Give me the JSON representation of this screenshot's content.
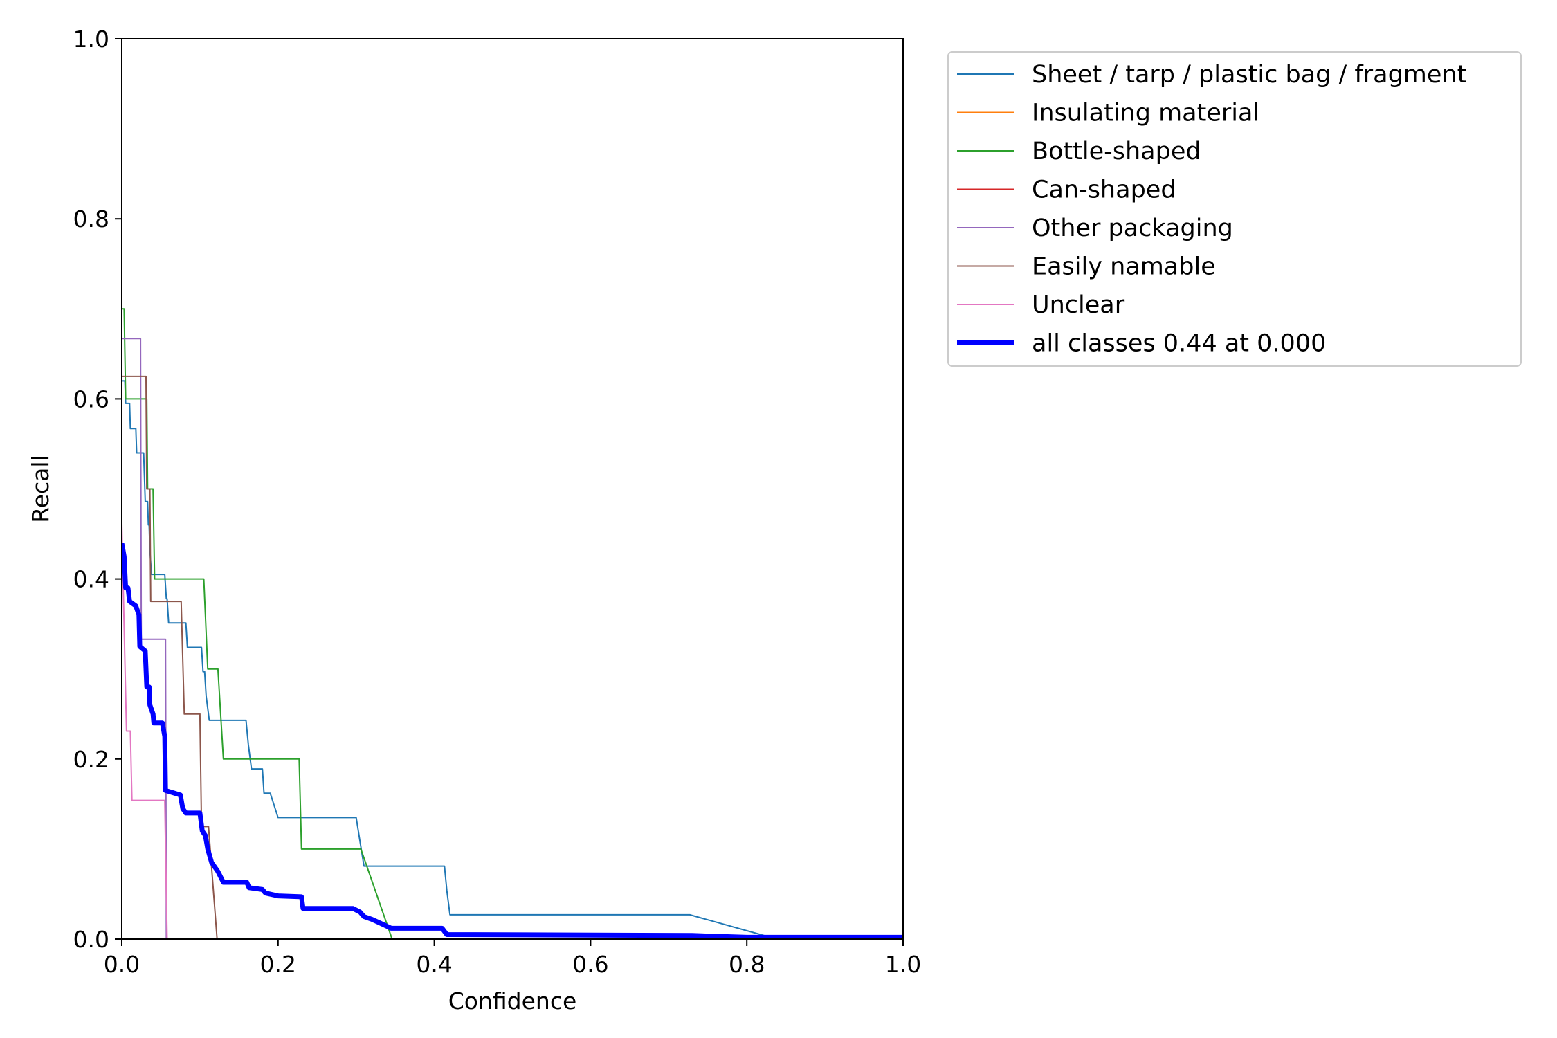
{
  "chart_data": {
    "type": "line",
    "title": "",
    "xlabel": "Confidence",
    "ylabel": "Recall",
    "xlim": [
      0.0,
      1.0
    ],
    "ylim": [
      0.0,
      1.0
    ],
    "xticks": [
      "0.0",
      "0.2",
      "0.4",
      "0.6",
      "0.8",
      "1.0"
    ],
    "yticks": [
      "0.0",
      "0.2",
      "0.4",
      "0.6",
      "0.8",
      "1.0"
    ],
    "grid": false,
    "legend_position": "outside-top-right",
    "series": [
      {
        "name": "Sheet / tarp / plastic bag / fragment",
        "color": "#1f77b4",
        "width": "thin",
        "points": [
          [
            0.0,
            0.62
          ],
          [
            0.004,
            0.62
          ],
          [
            0.005,
            0.595
          ],
          [
            0.01,
            0.595
          ],
          [
            0.011,
            0.567
          ],
          [
            0.018,
            0.567
          ],
          [
            0.019,
            0.54
          ],
          [
            0.028,
            0.54
          ],
          [
            0.03,
            0.486
          ],
          [
            0.033,
            0.486
          ],
          [
            0.034,
            0.46
          ],
          [
            0.035,
            0.46
          ],
          [
            0.036,
            0.432
          ],
          [
            0.038,
            0.405
          ],
          [
            0.055,
            0.405
          ],
          [
            0.057,
            0.378
          ],
          [
            0.058,
            0.378
          ],
          [
            0.06,
            0.351
          ],
          [
            0.082,
            0.351
          ],
          [
            0.084,
            0.324
          ],
          [
            0.102,
            0.324
          ],
          [
            0.104,
            0.297
          ],
          [
            0.106,
            0.297
          ],
          [
            0.108,
            0.27
          ],
          [
            0.112,
            0.243
          ],
          [
            0.159,
            0.243
          ],
          [
            0.162,
            0.216
          ],
          [
            0.166,
            0.189
          ],
          [
            0.18,
            0.189
          ],
          [
            0.182,
            0.162
          ],
          [
            0.19,
            0.162
          ],
          [
            0.2,
            0.135
          ],
          [
            0.3,
            0.135
          ],
          [
            0.305,
            0.108
          ],
          [
            0.31,
            0.081
          ],
          [
            0.413,
            0.081
          ],
          [
            0.416,
            0.054
          ],
          [
            0.42,
            0.027
          ],
          [
            0.727,
            0.027
          ],
          [
            0.83,
            0.002
          ],
          [
            1.0,
            0.001
          ]
        ]
      },
      {
        "name": "Insulating material",
        "color": "#ff7f0e",
        "width": "thin",
        "points": [
          [
            0.0,
            0.0
          ],
          [
            1.0,
            0.0
          ]
        ]
      },
      {
        "name": "Bottle-shaped",
        "color": "#2ca02c",
        "width": "thin",
        "points": [
          [
            0.0,
            0.7
          ],
          [
            0.003,
            0.7
          ],
          [
            0.005,
            0.6
          ],
          [
            0.032,
            0.6
          ],
          [
            0.033,
            0.5
          ],
          [
            0.04,
            0.5
          ],
          [
            0.042,
            0.4
          ],
          [
            0.105,
            0.4
          ],
          [
            0.11,
            0.3
          ],
          [
            0.123,
            0.3
          ],
          [
            0.13,
            0.2
          ],
          [
            0.227,
            0.2
          ],
          [
            0.23,
            0.1
          ],
          [
            0.306,
            0.1
          ],
          [
            0.346,
            0.0
          ],
          [
            1.0,
            0.0
          ]
        ]
      },
      {
        "name": "Can-shaped",
        "color": "#d62728",
        "width": "thin",
        "points": [
          [
            0.0,
            0.0
          ],
          [
            1.0,
            0.0
          ]
        ]
      },
      {
        "name": "Other packaging",
        "color": "#9467bd",
        "width": "thin",
        "points": [
          [
            0.0,
            0.667
          ],
          [
            0.024,
            0.667
          ],
          [
            0.025,
            0.333
          ],
          [
            0.056,
            0.333
          ],
          [
            0.057,
            0.0
          ],
          [
            1.0,
            0.0
          ]
        ]
      },
      {
        "name": "Easily namable",
        "color": "#8c564b",
        "width": "thin",
        "points": [
          [
            0.0,
            0.625
          ],
          [
            0.031,
            0.625
          ],
          [
            0.032,
            0.5
          ],
          [
            0.036,
            0.5
          ],
          [
            0.037,
            0.375
          ],
          [
            0.076,
            0.375
          ],
          [
            0.08,
            0.25
          ],
          [
            0.1,
            0.25
          ],
          [
            0.102,
            0.125
          ],
          [
            0.111,
            0.125
          ],
          [
            0.122,
            0.0
          ],
          [
            1.0,
            0.0
          ]
        ]
      },
      {
        "name": "Unclear",
        "color": "#e377c2",
        "width": "thin",
        "points": [
          [
            0.0,
            0.462
          ],
          [
            0.004,
            0.308
          ],
          [
            0.006,
            0.231
          ],
          [
            0.011,
            0.231
          ],
          [
            0.013,
            0.154
          ],
          [
            0.055,
            0.154
          ],
          [
            0.058,
            0.0
          ],
          [
            1.0,
            0.0
          ]
        ]
      },
      {
        "name": "all classes 0.44 at 0.000",
        "color": "#0000ff",
        "width": "thick",
        "points": [
          [
            0.0,
            0.44
          ],
          [
            0.003,
            0.425
          ],
          [
            0.005,
            0.39
          ],
          [
            0.008,
            0.39
          ],
          [
            0.01,
            0.375
          ],
          [
            0.018,
            0.37
          ],
          [
            0.022,
            0.36
          ],
          [
            0.023,
            0.325
          ],
          [
            0.03,
            0.32
          ],
          [
            0.032,
            0.28
          ],
          [
            0.035,
            0.28
          ],
          [
            0.036,
            0.26
          ],
          [
            0.04,
            0.25
          ],
          [
            0.041,
            0.24
          ],
          [
            0.052,
            0.24
          ],
          [
            0.055,
            0.225
          ],
          [
            0.056,
            0.165
          ],
          [
            0.075,
            0.16
          ],
          [
            0.078,
            0.145
          ],
          [
            0.082,
            0.14
          ],
          [
            0.1,
            0.14
          ],
          [
            0.103,
            0.12
          ],
          [
            0.107,
            0.115
          ],
          [
            0.11,
            0.1
          ],
          [
            0.115,
            0.085
          ],
          [
            0.123,
            0.075
          ],
          [
            0.13,
            0.063
          ],
          [
            0.16,
            0.063
          ],
          [
            0.163,
            0.057
          ],
          [
            0.18,
            0.055
          ],
          [
            0.184,
            0.051
          ],
          [
            0.2,
            0.048
          ],
          [
            0.23,
            0.047
          ],
          [
            0.232,
            0.034
          ],
          [
            0.296,
            0.034
          ],
          [
            0.305,
            0.03
          ],
          [
            0.31,
            0.025
          ],
          [
            0.32,
            0.022
          ],
          [
            0.33,
            0.018
          ],
          [
            0.345,
            0.012
          ],
          [
            0.41,
            0.012
          ],
          [
            0.416,
            0.005
          ],
          [
            0.73,
            0.004
          ],
          [
            0.8,
            0.002
          ],
          [
            1.0,
            0.002
          ]
        ]
      }
    ]
  }
}
